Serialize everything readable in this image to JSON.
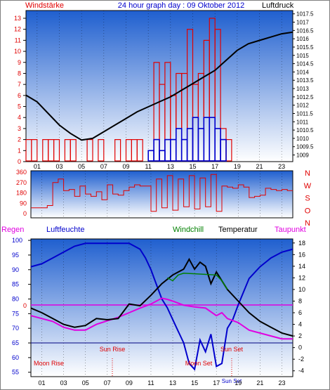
{
  "header": {
    "title": "24 hour graph day : 09 Oktober 2012",
    "left_label": "Windstärke",
    "right_label": "Luftdruck"
  },
  "colors": {
    "red": "#e00000",
    "blue": "#0000cc",
    "black": "#000000",
    "magenta": "#e000e0",
    "green": "#008000",
    "frame": "#000000",
    "sky_top": "#1f5fcf",
    "sky_bottom": "#ffffff"
  },
  "chart_data": [
    {
      "type": "bar",
      "panel": "wind",
      "title": "24 hour graph day : 09 Oktober 2012",
      "left_axis_label": "Windstärke",
      "right_axis_label": "Luftdruck",
      "x_ticks": [
        "01",
        "03",
        "05",
        "07",
        "09",
        "11",
        "13",
        "15",
        "17",
        "19",
        "21",
        "23"
      ],
      "y_left_ticks": [
        "0",
        "1",
        "2",
        "3",
        "4",
        "5",
        "6",
        "7",
        "8",
        "9",
        "10",
        "11",
        "12",
        "13"
      ],
      "y_left_range": [
        0,
        13.7
      ],
      "y_right_ticks": [
        "1009",
        "1009.5",
        "1010",
        "1010.5",
        "1011",
        "1011.5",
        "1012",
        "1012.5",
        "1013",
        "1013.5",
        "1014",
        "1014.5",
        "1015",
        "1015.5",
        "1016",
        "1016.5",
        "1017",
        "1017.5"
      ],
      "y_right_range": [
        1008.6,
        1017.7
      ],
      "series": [
        {
          "name": "gusts",
          "color": "#e00000",
          "hour": [
            0.0,
            0.5,
            1.0,
            1.5,
            2.0,
            2.5,
            3.0,
            3.5,
            4.0,
            4.5,
            5.0,
            5.5,
            6.0,
            6.5,
            7.0,
            7.5,
            8.0,
            8.5,
            9.0,
            9.5,
            10.0,
            10.5,
            11.0,
            11.5,
            12.0,
            12.5,
            13.0,
            13.5,
            14.0,
            14.5,
            15.0,
            15.5,
            16.0,
            16.5,
            17.0,
            17.5,
            18.0,
            18.5,
            19.0,
            19.5,
            20.0,
            20.5,
            21.0,
            21.5,
            22.0,
            22.5,
            23.0,
            23.5
          ],
          "values": [
            2,
            2,
            0,
            2,
            2,
            2,
            0,
            2,
            2,
            0,
            0,
            2,
            0,
            2,
            0,
            0,
            2,
            0,
            2,
            2,
            2,
            0,
            0,
            9,
            7,
            9,
            6,
            8,
            8,
            12,
            7,
            8,
            11,
            13,
            12,
            3,
            2,
            0,
            0,
            0,
            0,
            0,
            0,
            0,
            0,
            0,
            0,
            0
          ]
        },
        {
          "name": "mean wind",
          "color": "#0000cc",
          "hour": [
            11.0,
            11.5,
            12.0,
            12.5,
            13.0,
            13.5,
            14.0,
            14.5,
            15.0,
            15.5,
            16.0,
            16.5,
            17.0,
            17.5
          ],
          "values": [
            1,
            2,
            1,
            2,
            2,
            3,
            2,
            3,
            4,
            3,
            4,
            4,
            3,
            2
          ]
        },
        {
          "name": "pressure",
          "color": "#000000",
          "axis": "right",
          "hour": [
            0,
            1,
            2,
            3,
            4,
            5,
            6,
            7,
            8,
            9,
            10,
            11,
            12,
            13,
            14,
            15,
            16,
            17,
            18,
            19,
            20,
            21,
            22,
            23,
            24
          ],
          "values": [
            1012.6,
            1012.2,
            1011.5,
            1010.8,
            1010.3,
            1009.9,
            1010.0,
            1010.4,
            1010.8,
            1011.2,
            1011.6,
            1011.9,
            1012.2,
            1012.5,
            1012.9,
            1013.3,
            1013.7,
            1014.1,
            1014.7,
            1015.3,
            1015.7,
            1015.9,
            1016.1,
            1016.3,
            1016.4
          ]
        }
      ]
    },
    {
      "type": "line",
      "panel": "wind direction",
      "right_axis_label": [
        "N",
        "W",
        "S",
        "O",
        "N"
      ],
      "y_left_ticks": [
        "0",
        "90",
        "180",
        "270",
        "360"
      ],
      "y_range": [
        0,
        360
      ],
      "series": [
        {
          "name": "direction",
          "color": "#e00000",
          "hour": [
            0.0,
            0.5,
            1.0,
            1.5,
            2.0,
            2.5,
            3.0,
            3.5,
            4.0,
            4.5,
            5.0,
            5.5,
            6.0,
            6.5,
            7.0,
            7.5,
            8.0,
            8.5,
            9.0,
            9.5,
            10.0,
            10.5,
            11.0,
            11.5,
            12.0,
            12.5,
            13.0,
            13.5,
            14.0,
            14.5,
            15.0,
            15.5,
            16.0,
            16.5,
            17.0,
            17.5,
            18.0,
            18.5,
            19.0,
            19.5,
            20.0,
            20.5,
            21.0,
            21.5,
            22.0,
            22.5,
            23.0,
            23.5
          ],
          "values": [
            50,
            50,
            50,
            70,
            270,
            300,
            200,
            210,
            150,
            240,
            170,
            150,
            190,
            120,
            250,
            170,
            160,
            200,
            230,
            250,
            240,
            240,
            20,
            300,
            50,
            330,
            30,
            300,
            60,
            330,
            40,
            310,
            60,
            340,
            20,
            240,
            230,
            220,
            250,
            230,
            140,
            150,
            160,
            220,
            210,
            200,
            210,
            200
          ]
        }
      ]
    },
    {
      "type": "line",
      "panel": "temperature & humidity",
      "legend": [
        "Regen",
        "Luftfeuchte",
        "Windchill",
        "Temperatur",
        "Taupunkt"
      ],
      "x_ticks": [
        "01",
        "03",
        "05",
        "07",
        "09",
        "11",
        "13",
        "15",
        "17",
        "19",
        "21",
        "23"
      ],
      "y_left_ticks": [
        "55",
        "60",
        "65",
        "70",
        "75",
        "80",
        "85",
        "90",
        "95",
        "100"
      ],
      "y_left_range": [
        53.5,
        100.5
      ],
      "y_right_ticks": [
        "-4",
        "-2",
        "0",
        "2",
        "4",
        "6",
        "8",
        "10",
        "12",
        "14",
        "16",
        "18"
      ],
      "y_right_range": [
        -5.0,
        18.7
      ],
      "rain_level": "0",
      "annotations": [
        "Sun Rise",
        "Sun Set",
        "Moon Rise",
        "Moon Set",
        "Sun Set"
      ],
      "series": [
        {
          "name": "Luftfeuchte",
          "color": "#0000cc",
          "axis": "left",
          "hour": [
            0,
            1,
            2,
            3,
            4,
            5,
            6,
            7,
            8,
            9,
            9.5,
            10,
            10.5,
            11,
            11.5,
            12,
            12.5,
            13,
            13.5,
            14,
            14.5,
            15,
            15.5,
            16,
            16.5,
            17,
            17.5,
            18,
            18.5,
            19,
            20,
            21,
            22,
            23,
            24
          ],
          "values": [
            91,
            92,
            94,
            96,
            98,
            99,
            99,
            99,
            99,
            99,
            98,
            97,
            94,
            90,
            85,
            80,
            77,
            73,
            69,
            65,
            58,
            56,
            66,
            62,
            68,
            57,
            58,
            70,
            73,
            78,
            87,
            91,
            94,
            96,
            97
          ]
        },
        {
          "name": "Temperatur",
          "color": "#000000",
          "axis": "right",
          "hour": [
            0,
            1,
            2,
            3,
            4,
            5,
            6,
            7,
            8,
            9,
            10,
            11,
            12,
            13,
            13.5,
            14,
            14.5,
            15,
            15.5,
            16,
            16.5,
            17,
            17.5,
            18,
            19,
            20,
            21,
            22,
            23,
            24
          ],
          "values": [
            6.8,
            6.0,
            5.0,
            4.0,
            3.5,
            3.8,
            5.0,
            4.8,
            5.0,
            7.5,
            7.2,
            9.0,
            11.0,
            12.5,
            13.0,
            13.5,
            15.2,
            13.5,
            14.7,
            14.0,
            11.0,
            13.0,
            11.5,
            10.0,
            8.0,
            6.0,
            4.5,
            3.5,
            2.5,
            2.0
          ]
        },
        {
          "name": "Windchill",
          "color": "#008000",
          "axis": "right",
          "hour": [
            12.5,
            13,
            13.5,
            14,
            17,
            17.5,
            18
          ],
          "values": [
            12.0,
            11.5,
            12.5,
            12.8,
            12.5,
            11.5,
            10.0
          ]
        },
        {
          "name": "Taupunkt",
          "color": "#e000e0",
          "axis": "right",
          "hour": [
            0,
            1,
            2,
            3,
            4,
            5,
            6,
            7,
            8,
            9,
            10,
            11,
            12,
            12.5,
            13,
            14,
            15,
            16,
            17,
            17.5,
            18,
            19,
            20,
            21,
            22,
            23,
            24
          ],
          "values": [
            5.5,
            5.0,
            4.5,
            3.5,
            3.0,
            3.0,
            4.0,
            4.6,
            5.2,
            6.0,
            6.8,
            7.5,
            8.5,
            8.3,
            8.0,
            7.3,
            7.0,
            6.8,
            5.5,
            6.0,
            5.0,
            4.3,
            3.0,
            2.5,
            2.0,
            1.5,
            1.5
          ]
        }
      ]
    }
  ]
}
